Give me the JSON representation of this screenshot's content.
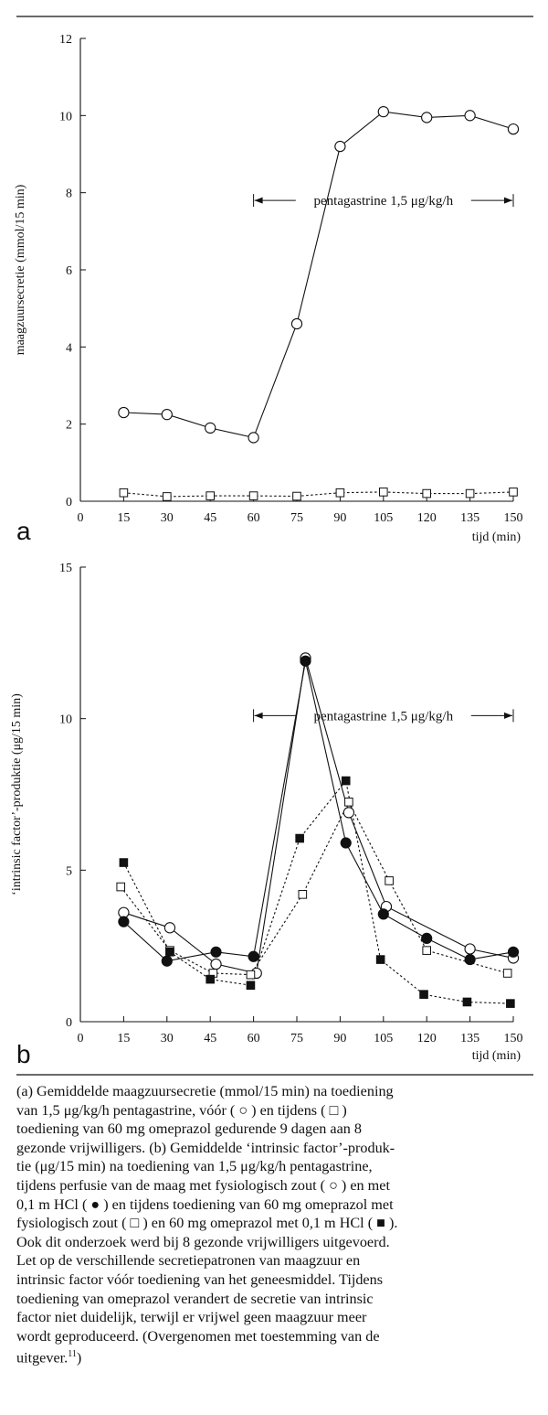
{
  "chart_data": [
    {
      "type": "line",
      "panel_label": "a",
      "xlabel": "tijd (min)",
      "ylabel": "maagzuursecretie (mmol/15 min)",
      "xlim": [
        0,
        150
      ],
      "ylim": [
        0,
        12
      ],
      "xticks": [
        "0",
        "15",
        "30",
        "45",
        "60",
        "75",
        "90",
        "105",
        "120",
        "135",
        "150"
      ],
      "yticks": [
        "0",
        "2",
        "4",
        "6",
        "8",
        "10",
        "12"
      ],
      "annotation": {
        "text": "pentagastrine 1,5 μg/kg/h",
        "x_from": 60,
        "x_to": 150,
        "y": 7.8
      },
      "series": [
        {
          "marker": "open-circle",
          "line": "solid",
          "x": [
            15,
            30,
            45,
            60,
            75,
            90,
            105,
            120,
            135,
            150
          ],
          "y": [
            2.3,
            2.25,
            1.9,
            1.65,
            4.6,
            9.2,
            10.1,
            9.95,
            10.0,
            9.65
          ]
        },
        {
          "marker": "open-square",
          "line": "dotted",
          "x": [
            15,
            30,
            45,
            60,
            75,
            90,
            105,
            120,
            135,
            150
          ],
          "y": [
            0.22,
            0.12,
            0.14,
            0.14,
            0.13,
            0.22,
            0.24,
            0.2,
            0.2,
            0.24
          ]
        }
      ]
    },
    {
      "type": "line",
      "panel_label": "b",
      "xlabel": "tijd (min)",
      "ylabel": "‘intrinsic factor’-produktie (μg/15 min)",
      "xlim": [
        0,
        150
      ],
      "ylim": [
        0,
        15
      ],
      "xticks": [
        "0",
        "15",
        "30",
        "45",
        "60",
        "75",
        "90",
        "105",
        "120",
        "135",
        "150"
      ],
      "yticks": [
        "0",
        "5",
        "10",
        "15"
      ],
      "annotation": {
        "text": "pentagastrine 1,5 μg/kg/h",
        "x_from": 60,
        "x_to": 150,
        "y": 10.1
      },
      "series": [
        {
          "marker": "open-circle",
          "line": "solid",
          "x": [
            15,
            31,
            47,
            61,
            78,
            93,
            106,
            135,
            150
          ],
          "y": [
            3.6,
            3.1,
            1.9,
            1.6,
            12.0,
            6.9,
            3.8,
            2.4,
            2.1
          ]
        },
        {
          "marker": "filled-circle",
          "line": "solid",
          "x": [
            15,
            30,
            47,
            60,
            78,
            92,
            105,
            120,
            135,
            150
          ],
          "y": [
            3.3,
            2.0,
            2.3,
            2.15,
            11.9,
            5.9,
            3.55,
            2.75,
            2.05,
            2.3
          ]
        },
        {
          "marker": "open-square",
          "line": "dotted",
          "x": [
            14,
            31,
            46,
            59,
            77,
            93,
            107,
            120,
            148
          ],
          "y": [
            4.45,
            2.35,
            1.6,
            1.55,
            4.2,
            7.25,
            4.65,
            2.35,
            1.6
          ]
        },
        {
          "marker": "filled-square",
          "line": "dotted",
          "x": [
            15,
            31,
            45,
            59,
            76,
            92,
            104,
            119,
            134,
            149
          ],
          "y": [
            5.25,
            2.3,
            1.4,
            1.2,
            6.05,
            7.95,
            2.05,
            0.9,
            0.65,
            0.6
          ]
        }
      ]
    }
  ],
  "caption": [
    "(a) Gemiddelde maagzuursecretie (mmol/15 min) na toediening",
    "van 1,5 μg/kg/h pentagastrine, vóór ( ○ ) en tijdens ( □ )",
    "toediening van 60 mg omeprazol gedurende 9 dagen aan 8",
    "gezonde vrijwilligers. (b) Gemiddelde ‘intrinsic factor’-produk-",
    "tie (μg/15 min) na toediening van 1,5 μg/kg/h pentagastrine,",
    "tijdens perfusie van de maag met fysiologisch zout ( ○ ) en met",
    "0,1 m HCl ( ● ) en tijdens toediening van 60 mg omeprazol met",
    "fysiologisch zout ( □ ) en 60 mg omeprazol met 0,1 m HCl ( ■ ).",
    "Ook dit onderzoek werd bij 8 gezonde vrijwilligers uitgevoerd.",
    "Let op de verschillende secretiepatronen van maagzuur en",
    "intrinsic factor vóór toediening van het geneesmiddel. Tijdens",
    "toediening van omeprazol verandert de secretie van intrinsic",
    "factor niet duidelijk, terwijl er vrijwel geen maagzuur meer",
    "wordt geproduceerd. (Overgenomen met toestemming van de",
    "uitgever."
  ],
  "caption_ref": "11",
  "caption_close": ")"
}
